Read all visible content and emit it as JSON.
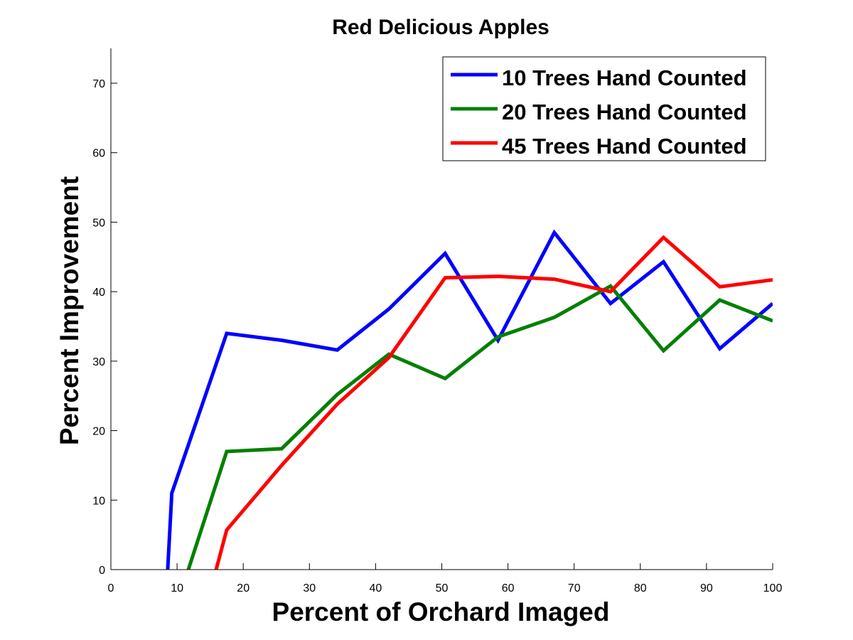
{
  "chart_data": {
    "type": "line",
    "title": "Red Delicious Apples",
    "xlabel": "Percent of Orchard Imaged",
    "ylabel": "Percent Improvement",
    "xlim": [
      0,
      100
    ],
    "ylim": [
      0,
      75
    ],
    "xticks": [
      0,
      10,
      20,
      30,
      40,
      50,
      60,
      70,
      80,
      90,
      100
    ],
    "yticks": [
      0,
      10,
      20,
      30,
      40,
      50,
      60,
      70
    ],
    "grid": false,
    "legend_position": "top-right",
    "series": [
      {
        "name": "10 Trees Hand Counted",
        "color": "#0000ff",
        "x": [
          8.3,
          9.2,
          17.5,
          25.8,
          34.2,
          42.0,
          50.5,
          58.5,
          67.0,
          75.5,
          83.5,
          92.0,
          100
        ],
        "y": [
          -5,
          11,
          34,
          33,
          31.6,
          37.5,
          45.5,
          33,
          48.5,
          38.3,
          44.3,
          31.8,
          38.3
        ]
      },
      {
        "name": "20 Trees Hand Counted",
        "color": "#008000",
        "x": [
          10.0,
          17.5,
          25.8,
          34.2,
          42.0,
          50.5,
          58.5,
          67.0,
          75.5,
          83.5,
          92.0,
          100
        ],
        "y": [
          -5,
          17,
          17.4,
          25.2,
          31,
          27.5,
          33.5,
          36.3,
          40.8,
          31.5,
          38.8,
          35.8
        ]
      },
      {
        "name": "45 Trees Hand Counted",
        "color": "#ff0000",
        "x": [
          14.5,
          17.5,
          25.8,
          34.2,
          42.0,
          50.5,
          58.5,
          67.0,
          75.5,
          83.5,
          92.0,
          100
        ],
        "y": [
          -5,
          5.7,
          15,
          23.8,
          30.5,
          42,
          42.2,
          41.8,
          40,
          47.8,
          40.7,
          41.7
        ]
      }
    ]
  }
}
